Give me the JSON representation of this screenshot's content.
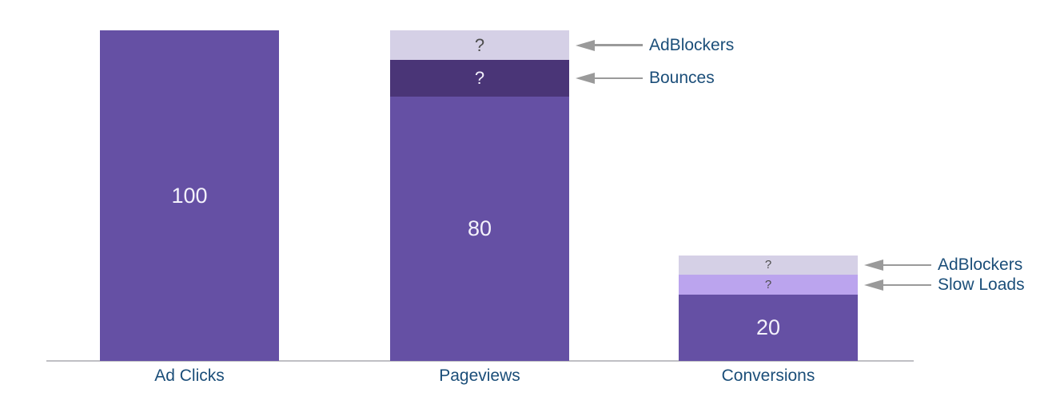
{
  "page": {
    "background_color": "#ffffff"
  },
  "chart_data": {
    "type": "bar",
    "stacked": true,
    "title": "",
    "xlabel": "",
    "ylabel": "",
    "categories": [
      "Ad Clicks",
      "Pageviews",
      "Conversions"
    ],
    "ylim": [
      0,
      100
    ],
    "grid": false,
    "legend_position": "none",
    "note": "Segments labeled '?' have no printed value; their numeric values below are estimated from segment heights.",
    "bars": [
      {
        "category": "Ad Clicks",
        "segments": [
          {
            "name": "Ad Clicks",
            "display_label": "100",
            "value": 100,
            "estimated": false,
            "color": "#6550a4",
            "label_color": "#f3f1fb"
          }
        ]
      },
      {
        "category": "Pageviews",
        "segments": [
          {
            "name": "Pageviews",
            "display_label": "80",
            "value": 80,
            "estimated": false,
            "color": "#6550a4",
            "label_color": "#f3f1fb"
          },
          {
            "name": "Bounces",
            "display_label": "?",
            "value": 11,
            "estimated": true,
            "color": "#4a3577",
            "label_color": "#f3f1fb"
          },
          {
            "name": "AdBlockers",
            "display_label": "?",
            "value": 9,
            "estimated": true,
            "color": "#d5d0e6",
            "label_color": "#4d4d4d"
          }
        ]
      },
      {
        "category": "Conversions",
        "segments": [
          {
            "name": "Conversions",
            "display_label": "20",
            "value": 20,
            "estimated": false,
            "color": "#6550a4",
            "label_color": "#f3f1fb"
          },
          {
            "name": "Slow Loads",
            "display_label": "?",
            "value": 6,
            "estimated": true,
            "color": "#bba4ee",
            "label_color": "#4d4d4d"
          },
          {
            "name": "AdBlockers",
            "display_label": "?",
            "value": 6,
            "estimated": true,
            "color": "#d5d0e6",
            "label_color": "#4d4d4d"
          }
        ]
      }
    ],
    "annotations": [
      {
        "bar_index": 1,
        "segment_index": 2,
        "label": "AdBlockers"
      },
      {
        "bar_index": 1,
        "segment_index": 1,
        "label": "Bounces"
      },
      {
        "bar_index": 2,
        "segment_index": 2,
        "label": "AdBlockers"
      },
      {
        "bar_index": 2,
        "segment_index": 1,
        "label": "Slow Loads"
      }
    ],
    "style": {
      "category_label_color": "#1b4e79",
      "annotation_label_color": "#1b4e79",
      "arrow_color": "#9a9a9a",
      "axis_line_color": "#bfbfc4"
    }
  }
}
